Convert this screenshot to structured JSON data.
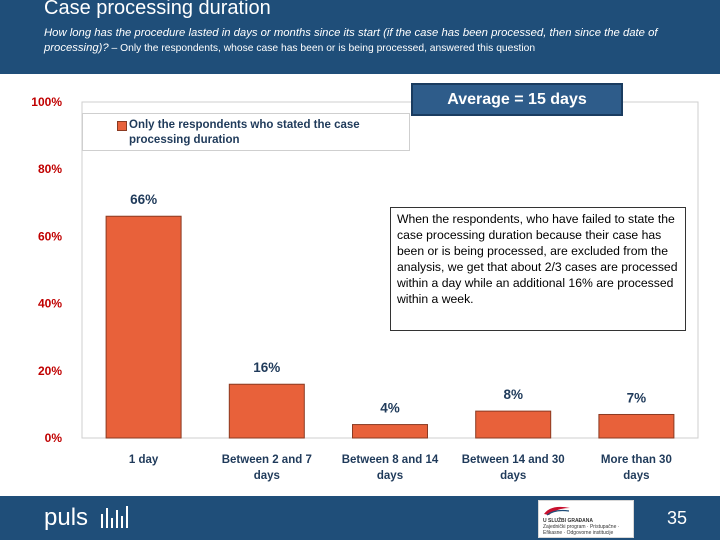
{
  "header": {
    "title": "Case processing duration",
    "question": "How long has the procedure lasted in days or months since its start (if the case has been processed, then since the date of processing)?",
    "note": " – Only the respondents, whose case has been or is being processed, answered this question"
  },
  "average_label": "Average = 15 days",
  "annotation": "When the respondents, who have failed to state the case processing duration because their case has been or is being processed, are excluded from the analysis, we get that about 2/3 cases are processed within a day while an additional 16% are processed within a week.",
  "footer": {
    "brand": "puls",
    "partner_name": "U SLUŽBI GRAĐANA",
    "partner_subtext": "Zajednički program · Pristupačne · Efikasne · Odgovorne institucije",
    "page_number": "35"
  },
  "colors": {
    "bar": "#e8613a",
    "bar_stroke": "#8a3a22",
    "tick_text": "#c00000",
    "label_text": "#1f3a5a",
    "header_bg": "#1f4e79"
  },
  "icons": {
    "brand_mark": "bar-signal-icon"
  },
  "chart_data": {
    "type": "bar",
    "categories": [
      "1 day",
      "Between 2 and 7 days",
      "Between 8 and 14 days",
      "Between 14 and 30 days",
      "More than 30 days"
    ],
    "series": [
      {
        "name": "Only the respondents who stated the case processing duration",
        "values": [
          66,
          16,
          4,
          8,
          7
        ]
      }
    ],
    "data_labels": [
      "66%",
      "16%",
      "4%",
      "8%",
      "7%"
    ],
    "yticks": [
      "0%",
      "20%",
      "40%",
      "60%",
      "80%",
      "100%"
    ],
    "ylim": [
      0,
      100
    ],
    "title": "",
    "xlabel": "",
    "ylabel": "",
    "legend": "top-left",
    "grid": false
  }
}
